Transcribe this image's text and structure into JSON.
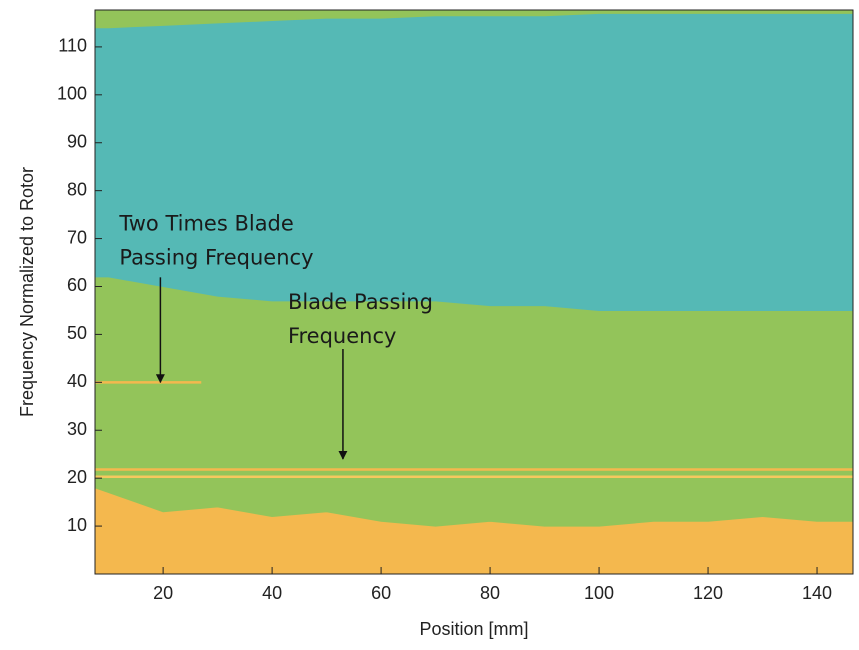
{
  "chart_data": {
    "type": "area",
    "stacked": true,
    "x_label": "Position [mm]",
    "y_label": "Frequency Normalized to Rotor",
    "x": [
      7.5,
      10,
      20,
      30,
      40,
      50,
      60,
      70,
      80,
      90,
      100,
      110,
      120,
      130,
      140,
      146.6
    ],
    "series": [
      {
        "color": "#f4b84e",
        "values": [
          18,
          17,
          13,
          14,
          12,
          13,
          11,
          10,
          11,
          10,
          10,
          11,
          11,
          12,
          11,
          11
        ]
      },
      {
        "color": "#93c45a",
        "values": [
          44,
          45,
          47,
          44,
          45,
          44,
          46,
          47,
          45,
          46,
          45,
          44,
          44,
          43,
          44,
          44
        ]
      },
      {
        "color": "#55b9b5",
        "values": [
          52,
          52,
          54.5,
          57,
          58.5,
          59,
          59,
          59.5,
          60.5,
          60.5,
          62,
          62,
          62,
          62,
          62,
          62
        ]
      },
      {
        "color": "#93c45a",
        "values": [
          3.7,
          3.7,
          3.2,
          2.7,
          2.2,
          1.7,
          1.7,
          1.2,
          1.2,
          1.2,
          0.7,
          0.7,
          0.7,
          0.7,
          0.7,
          0.7
        ]
      }
    ],
    "hlines": [
      {
        "y": 20.3,
        "x": [
          7.5,
          146.6
        ],
        "color": "#f6c85e"
      },
      {
        "y": 21.8,
        "x": [
          7.5,
          146.6
        ],
        "color": "#f4b84e"
      },
      {
        "y": 40,
        "x": [
          7.5,
          27
        ],
        "color": "#f4b84e"
      }
    ],
    "annotations": [
      {
        "lines": [
          "Two Times Blade",
          "Passing Frequency"
        ],
        "xy": [
          19.5,
          40
        ]
      },
      {
        "lines": [
          "Blade Passing",
          "Frequency"
        ],
        "xy": [
          53,
          24
        ]
      }
    ],
    "xlim": [
      7.5,
      146.6
    ],
    "ylim": [
      0,
      117.7
    ],
    "xticks": [
      20,
      40,
      60,
      80,
      100,
      120,
      140
    ],
    "yticks": [
      10,
      20,
      30,
      40,
      50,
      60,
      70,
      80,
      90,
      100,
      110
    ]
  }
}
